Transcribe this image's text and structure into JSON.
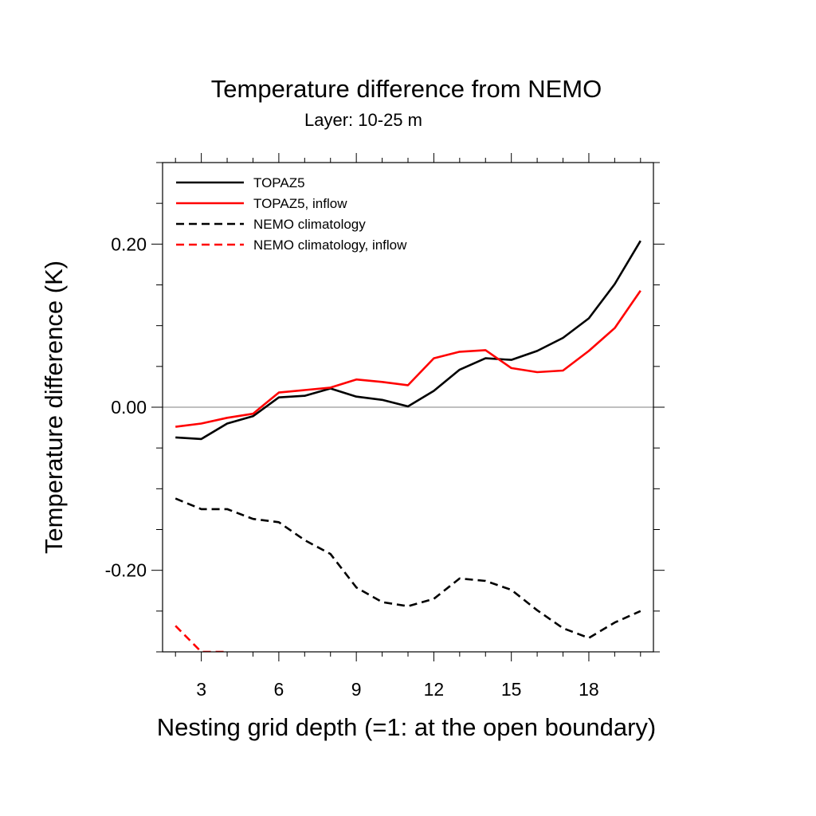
{
  "chart_data": {
    "type": "line",
    "title": "Temperature difference from NEMO",
    "subtitle": "Layer: 10-25 m",
    "xlabel": "Nesting grid depth (=1: at the open boundary)",
    "ylabel": "Temperature difference (K)",
    "xlim": [
      1.5,
      20.5
    ],
    "ylim": [
      -0.3,
      0.3
    ],
    "x_ticks": [
      3,
      6,
      9,
      12,
      15,
      18
    ],
    "x_tick_labels": [
      "3",
      "6",
      "9",
      "12",
      "15",
      "18"
    ],
    "y_ticks": [
      0.2,
      0.0,
      -0.2
    ],
    "y_tick_labels": [
      "0.20",
      "0.00",
      "-0.20"
    ],
    "zero_line": true,
    "grid": false,
    "legend_position": "top-left",
    "x": [
      2,
      3,
      4,
      5,
      6,
      7,
      8,
      9,
      10,
      11,
      12,
      13,
      14,
      15,
      16,
      17,
      18,
      19,
      20
    ],
    "series": [
      {
        "name": "TOPAZ5",
        "color": "#000000",
        "dash": "solid",
        "values": [
          -0.037,
          -0.039,
          -0.02,
          -0.011,
          0.012,
          0.014,
          0.023,
          0.013,
          0.009,
          0.001,
          0.02,
          0.046,
          0.06,
          0.058,
          0.069,
          0.085,
          0.109,
          0.151,
          0.204
        ]
      },
      {
        "name": "TOPAZ5, inflow",
        "color": "#ff0000",
        "dash": "solid",
        "values": [
          -0.024,
          -0.02,
          -0.013,
          -0.008,
          0.018,
          0.021,
          0.024,
          0.034,
          0.031,
          0.027,
          0.06,
          0.068,
          0.07,
          0.048,
          0.043,
          0.045,
          0.069,
          0.097,
          0.143
        ]
      },
      {
        "name": "NEMO climatology",
        "color": "#000000",
        "dash": "dashed",
        "values": [
          -0.112,
          -0.125,
          -0.125,
          -0.137,
          -0.141,
          -0.163,
          -0.18,
          -0.221,
          -0.239,
          -0.244,
          -0.235,
          -0.21,
          -0.213,
          -0.224,
          -0.249,
          -0.271,
          -0.283,
          -0.264,
          -0.25
        ]
      },
      {
        "name": "NEMO climatology, inflow",
        "color": "#ff0000",
        "dash": "dashed",
        "values": [
          -0.268,
          -0.3,
          -0.3,
          null,
          null,
          null,
          null,
          null,
          null,
          null,
          null,
          null,
          null,
          null,
          null,
          null,
          null,
          null,
          null
        ]
      }
    ]
  }
}
